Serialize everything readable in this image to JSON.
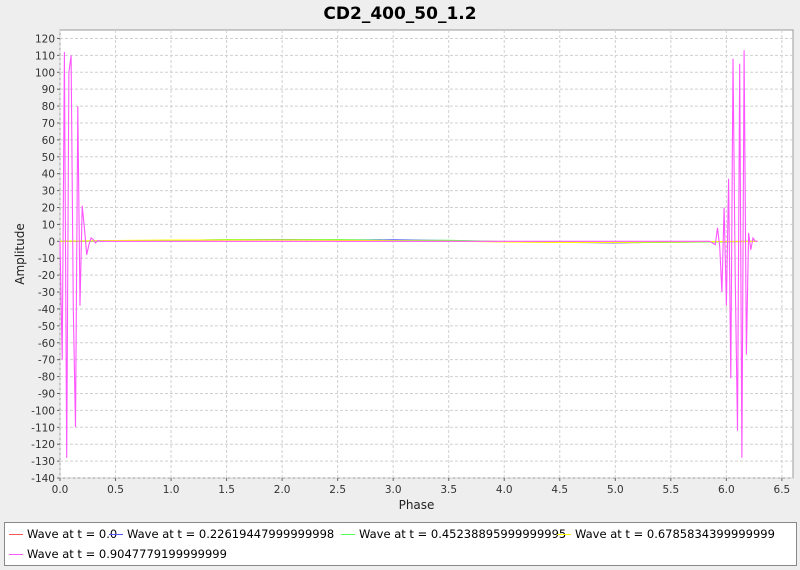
{
  "chart_data": {
    "type": "line",
    "title": "CD2_400_50_1.2",
    "xlabel": "Phase",
    "ylabel": "Amplitude",
    "xlim": [
      0.0,
      6.6
    ],
    "ylim": [
      -140,
      125
    ],
    "xticks": [
      "0.0",
      "0.5",
      "1.0",
      "1.5",
      "2.0",
      "2.5",
      "3.0",
      "3.5",
      "4.0",
      "4.5",
      "5.0",
      "5.5",
      "6.0",
      "6.5"
    ],
    "yticks": [
      "120",
      "110",
      "100",
      "90",
      "80",
      "70",
      "60",
      "50",
      "40",
      "30",
      "20",
      "10",
      "0",
      "-10",
      "-20",
      "-30",
      "-40",
      "-50",
      "-60",
      "-70",
      "-80",
      "-90",
      "-100",
      "-110",
      "-120",
      "-130",
      "-140"
    ],
    "grid": true,
    "legend_position": "bottom",
    "series": [
      {
        "name": "Wave at t = 0.0",
        "color": "#ff5555",
        "x": [
          0.0,
          0.5,
          1.0,
          1.5,
          2.0,
          2.5,
          3.0,
          3.5,
          4.0,
          4.5,
          5.0,
          5.5,
          6.0,
          6.28
        ],
        "y": [
          0,
          0.3,
          0.5,
          0.8,
          1.0,
          0.8,
          0.5,
          0.2,
          -0.2,
          -0.5,
          -0.8,
          -0.5,
          -0.2,
          0
        ]
      },
      {
        "name": "Wave at t = 0.22619447999999998",
        "color": "#5555ff",
        "x": [
          0.0,
          0.5,
          1.0,
          1.5,
          2.0,
          2.5,
          3.0,
          3.5,
          4.0,
          4.5,
          5.0,
          5.5,
          6.0,
          6.28
        ],
        "y": [
          0,
          0.2,
          0.6,
          0.9,
          1.1,
          0.7,
          0.9,
          0.4,
          -0.3,
          -0.6,
          -0.9,
          -0.4,
          -0.1,
          0
        ]
      },
      {
        "name": "Wave at t = 0.45238895999999995",
        "color": "#55ff55",
        "x": [
          0.0,
          0.5,
          1.0,
          1.5,
          2.0,
          2.5,
          3.0,
          3.5,
          4.0,
          4.5,
          5.0,
          5.5,
          6.0,
          6.28
        ],
        "y": [
          0,
          0.4,
          0.4,
          1.0,
          0.9,
          1.0,
          0.5,
          0.6,
          -0.1,
          -0.4,
          -0.7,
          -0.6,
          -0.3,
          0
        ]
      },
      {
        "name": "Wave at t = 0.6785834399999999",
        "color": "#ffff00",
        "x": [
          0.0,
          0.5,
          1.0,
          1.5,
          2.0,
          2.5,
          3.0,
          3.5,
          4.0,
          4.5,
          5.0,
          5.5,
          6.0,
          6.28
        ],
        "y": [
          0,
          0.5,
          0.7,
          0.7,
          0.8,
          0.6,
          0.3,
          0.1,
          -0.4,
          -0.7,
          -0.6,
          -0.3,
          -0.1,
          0
        ]
      },
      {
        "name": "Wave at t = 0.9047779199999999",
        "color": "#ff55ff",
        "x": [
          0.0,
          0.02,
          0.04,
          0.06,
          0.08,
          0.1,
          0.12,
          0.14,
          0.16,
          0.18,
          0.2,
          0.22,
          0.24,
          0.26,
          0.28,
          0.3,
          0.32,
          0.34,
          0.36,
          0.4,
          0.5,
          0.6,
          1.0,
          2.0,
          3.0,
          4.0,
          5.0,
          5.7,
          5.85,
          5.9,
          5.92,
          5.94,
          5.96,
          5.98,
          6.0,
          6.02,
          6.04,
          6.06,
          6.08,
          6.1,
          6.12,
          6.14,
          6.16,
          6.18,
          6.2,
          6.22,
          6.24,
          6.26,
          6.28
        ],
        "y": [
          0,
          -70,
          112,
          -128,
          100,
          110,
          -40,
          -110,
          80,
          -38,
          21,
          8,
          -8,
          -2,
          2,
          1,
          -1,
          0.5,
          0,
          0,
          0,
          0,
          0,
          0,
          0,
          0,
          0,
          0,
          0,
          -2,
          8,
          -3,
          -30,
          20,
          -38,
          37,
          -81,
          108,
          -20,
          -112,
          105,
          -128,
          113,
          -67,
          5,
          -5,
          2,
          0,
          0
        ]
      }
    ]
  }
}
